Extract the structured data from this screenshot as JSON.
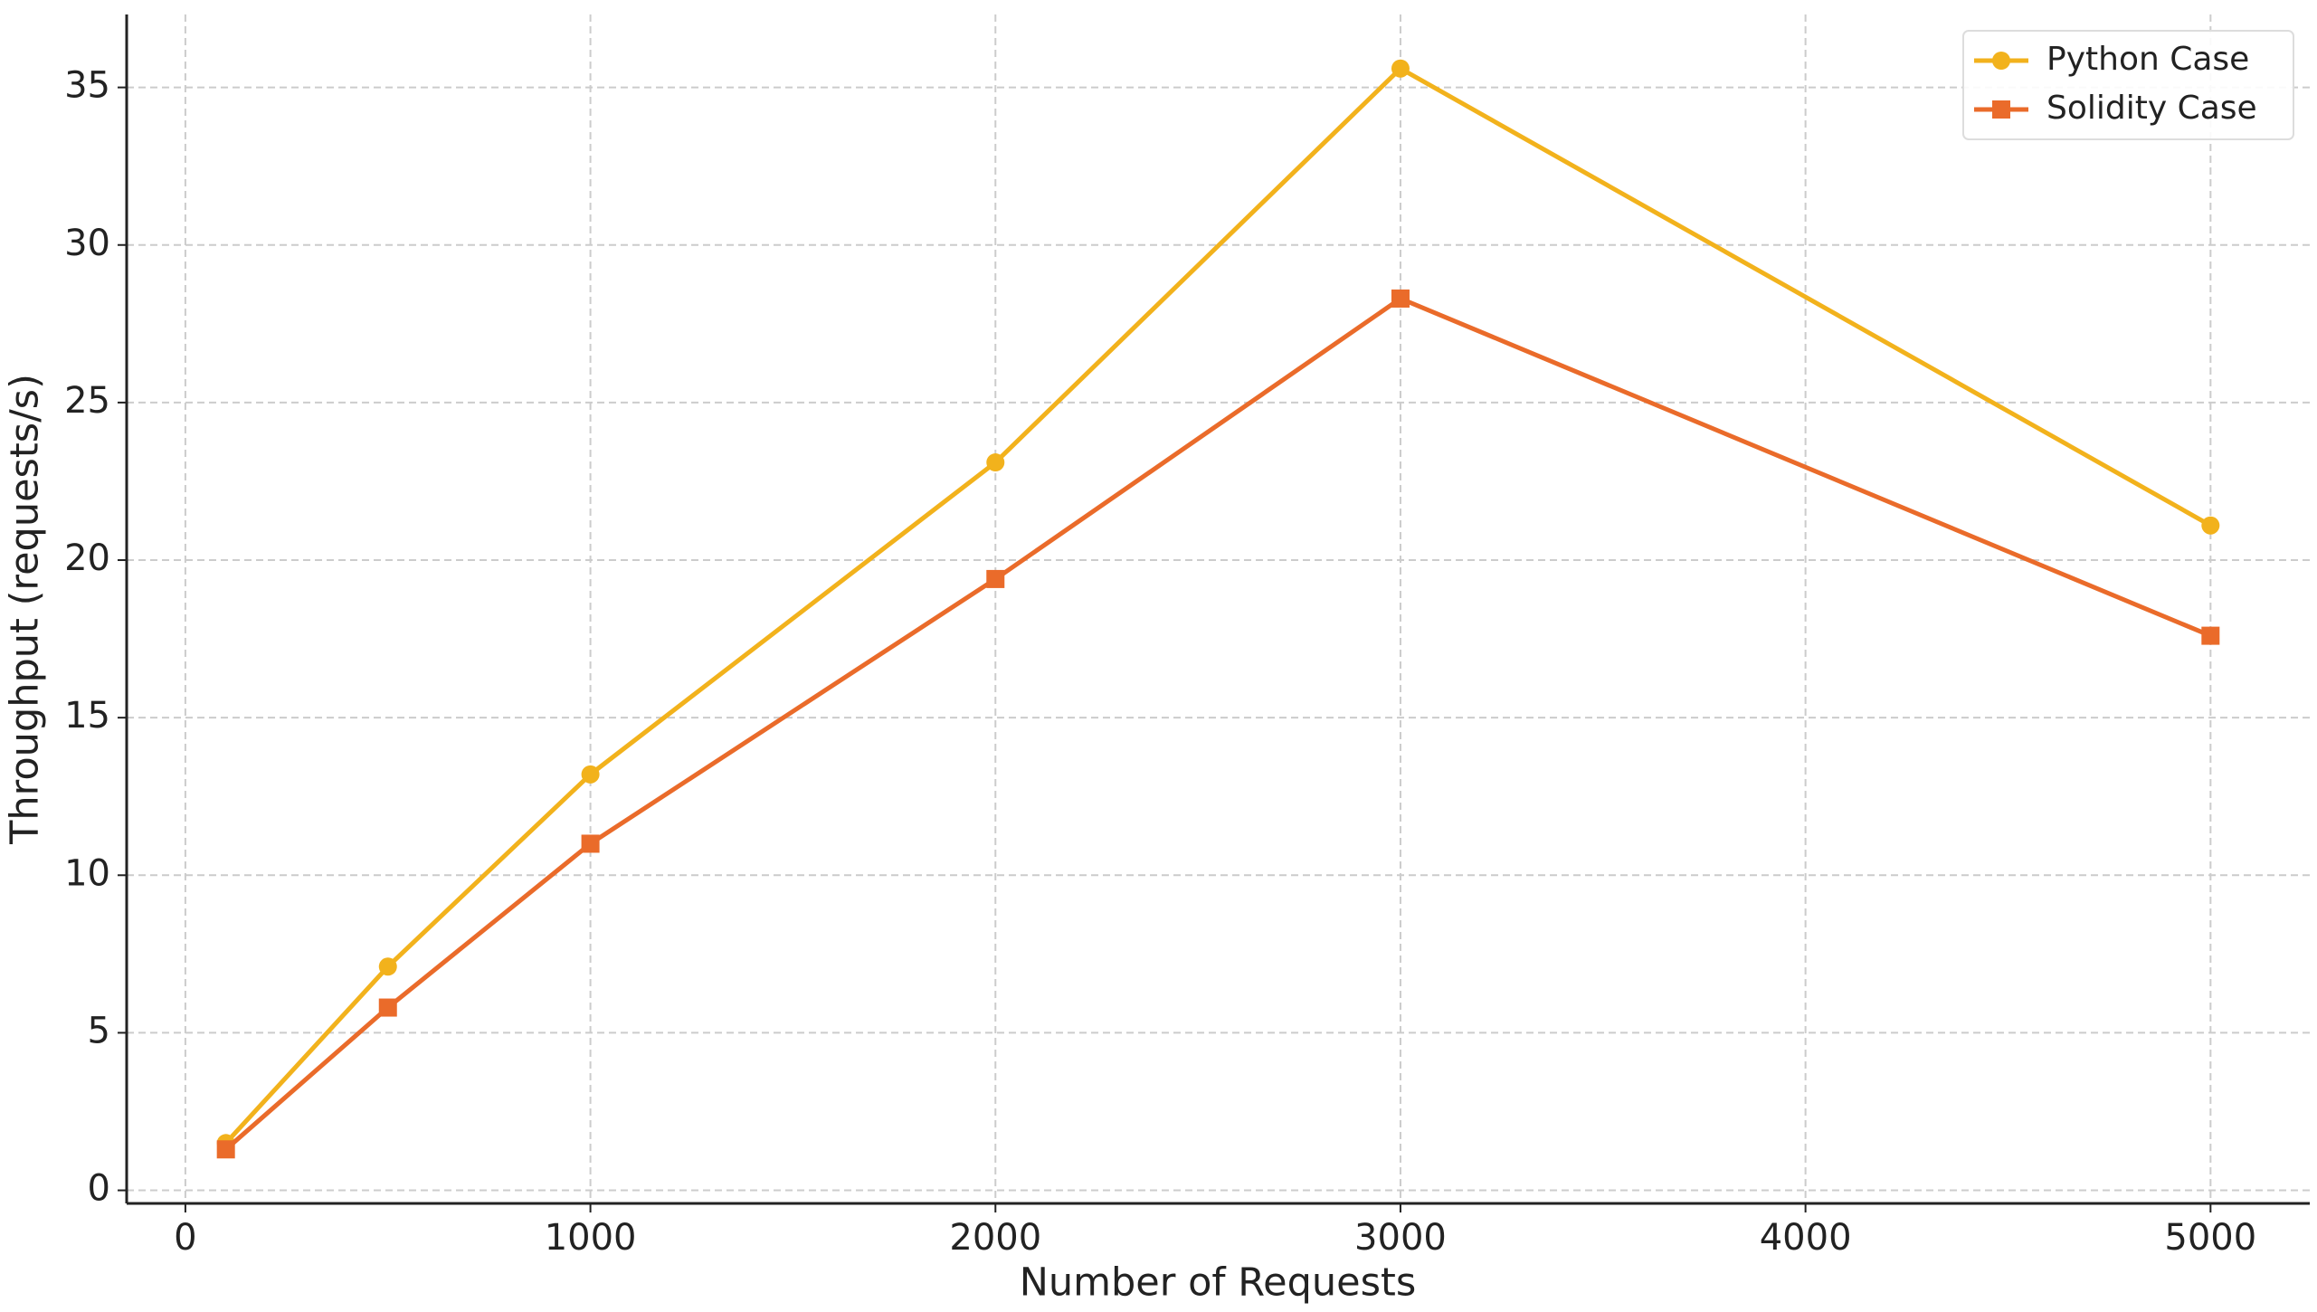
{
  "chart_data": {
    "type": "line",
    "x_label": "Number of Requests",
    "y_label": "Throughput (requests/s)",
    "x": [
      100,
      500,
      1000,
      2000,
      3000,
      5000
    ],
    "series": [
      {
        "name": "Python Case",
        "color": "#f2b21c",
        "marker": "circle",
        "values": [
          1.5,
          7.1,
          13.2,
          23.1,
          35.6,
          21.1
        ]
      },
      {
        "name": "Solidity Case",
        "color": "#ea6b2a",
        "marker": "square",
        "values": [
          1.3,
          5.8,
          11.0,
          19.4,
          28.3,
          17.6
        ]
      }
    ],
    "xlim": [
      -145,
      5245
    ],
    "ylim": [
      -0.415,
      37.315
    ],
    "xticks": [
      0,
      1000,
      2000,
      3000,
      4000,
      5000
    ],
    "yticks": [
      0,
      5,
      10,
      15,
      20,
      25,
      30,
      35
    ],
    "grid": true,
    "legend": "upper right"
  }
}
